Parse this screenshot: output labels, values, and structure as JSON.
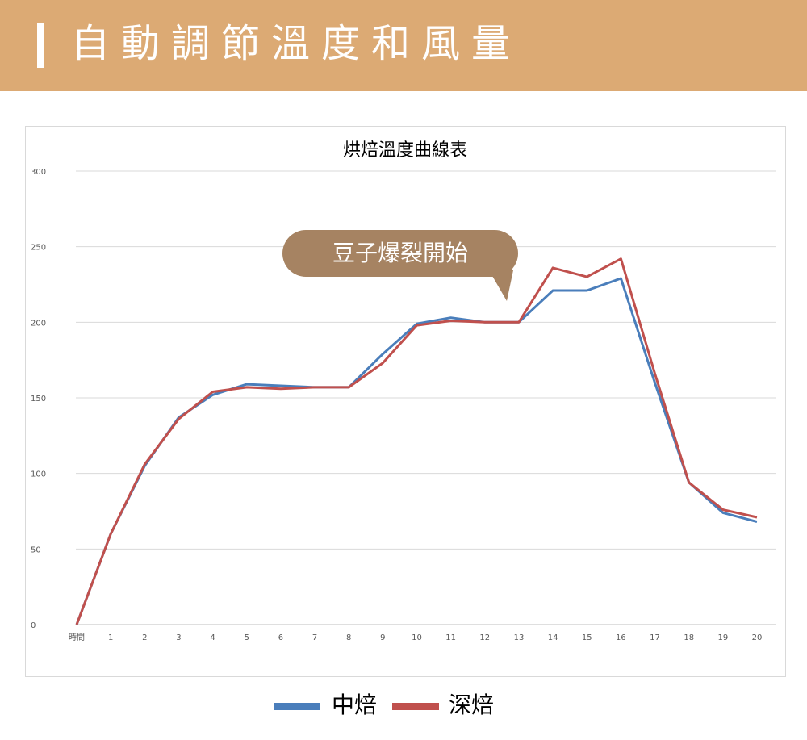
{
  "header": {
    "title": "自動調節溫度和風量",
    "accent_color": "#dcaa74"
  },
  "callout": {
    "text": "豆子爆裂開始",
    "color": "#a68362"
  },
  "chart_data": {
    "type": "line",
    "title": "烘焙溫度曲線表",
    "categories": [
      "時間",
      "1",
      "2",
      "3",
      "4",
      "5",
      "6",
      "7",
      "8",
      "9",
      "10",
      "11",
      "12",
      "13",
      "14",
      "15",
      "16",
      "17",
      "18",
      "19",
      "20"
    ],
    "ylim": [
      0,
      300
    ],
    "yticks": [
      0,
      50,
      100,
      150,
      200,
      250,
      300
    ],
    "grid": true,
    "legend_position": "bottom",
    "series": [
      {
        "name": "中焙",
        "color": "#4a7ebb",
        "values": [
          0,
          60,
          105,
          137,
          152,
          159,
          158,
          157,
          157,
          179,
          199,
          203,
          200,
          200,
          221,
          221,
          229,
          160,
          94,
          74,
          68
        ]
      },
      {
        "name": "深焙",
        "color": "#c0504d",
        "values": [
          0,
          60,
          106,
          136,
          154,
          157,
          156,
          157,
          157,
          173,
          198,
          201,
          200,
          200,
          236,
          230,
          242,
          166,
          94,
          76,
          71
        ]
      }
    ]
  }
}
